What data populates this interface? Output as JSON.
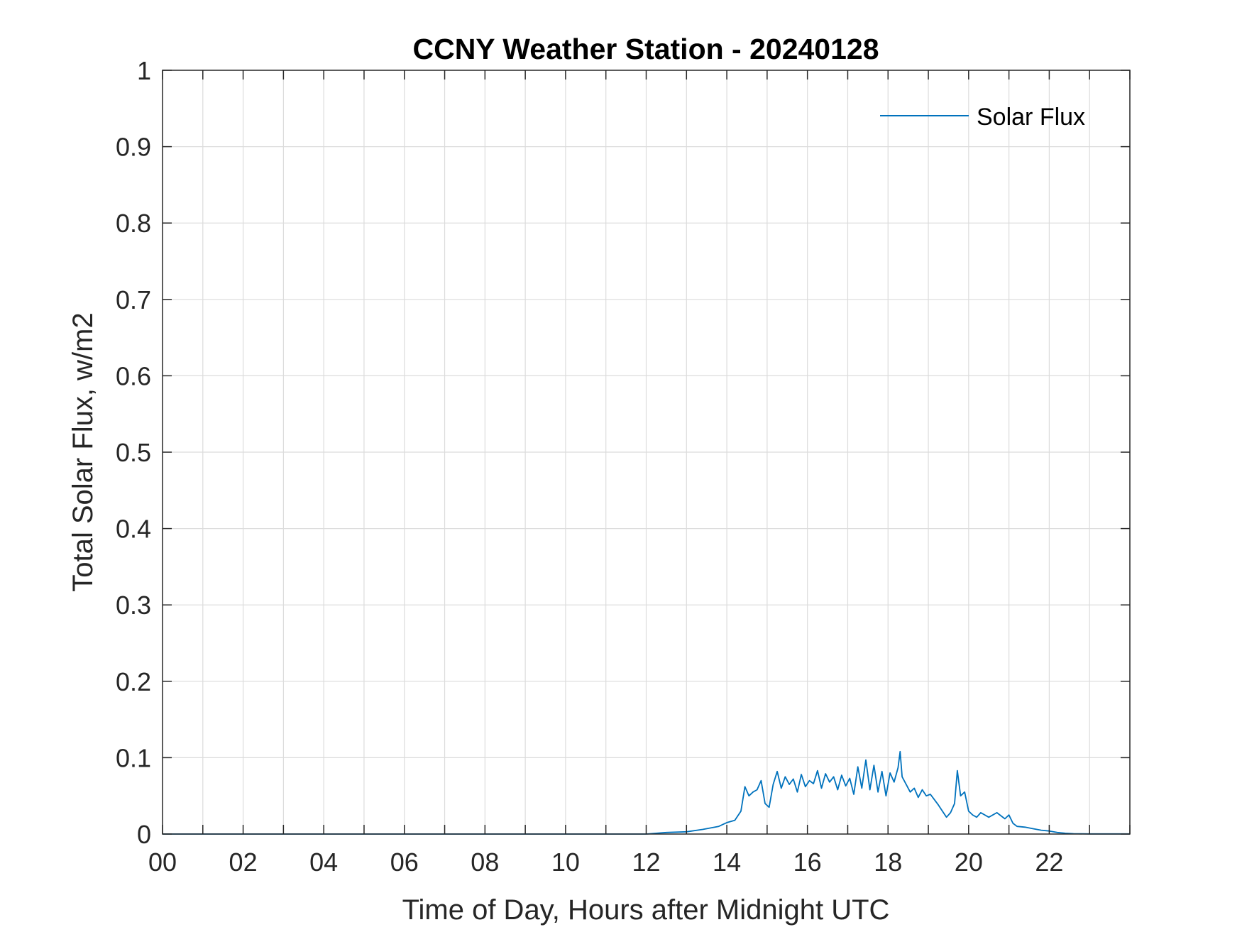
{
  "chart_data": {
    "type": "line",
    "title": "CCNY Weather Station - 20240128",
    "xlabel": "Time of Day, Hours after Midnight UTC",
    "ylabel": "Total Solar Flux, w/m2",
    "xlim": [
      0,
      24
    ],
    "ylim": [
      0,
      1
    ],
    "x_ticks": [
      0,
      2,
      4,
      6,
      8,
      10,
      12,
      14,
      16,
      18,
      20,
      22
    ],
    "x_tick_labels": [
      "00",
      "02",
      "04",
      "06",
      "08",
      "10",
      "12",
      "14",
      "16",
      "18",
      "20",
      "22"
    ],
    "y_ticks": [
      0,
      0.1,
      0.2,
      0.3,
      0.4,
      0.5,
      0.6,
      0.7,
      0.8,
      0.9,
      1
    ],
    "y_tick_labels": [
      "0",
      "0.1",
      "0.2",
      "0.3",
      "0.4",
      "0.5",
      "0.6",
      "0.7",
      "0.8",
      "0.9",
      "1"
    ],
    "grid": true,
    "legend": {
      "position": "top-right",
      "entries": [
        "Solar Flux"
      ]
    },
    "series_color": "#0072BD",
    "series": [
      {
        "name": "Solar Flux",
        "x": [
          0,
          12.0,
          12.5,
          13.0,
          13.4,
          13.8,
          14.0,
          14.2,
          14.35,
          14.45,
          14.55,
          14.65,
          14.75,
          14.85,
          14.95,
          15.05,
          15.15,
          15.25,
          15.35,
          15.45,
          15.55,
          15.65,
          15.75,
          15.85,
          15.95,
          16.05,
          16.15,
          16.25,
          16.35,
          16.45,
          16.55,
          16.65,
          16.75,
          16.85,
          16.95,
          17.05,
          17.15,
          17.25,
          17.35,
          17.45,
          17.55,
          17.65,
          17.75,
          17.85,
          17.95,
          18.05,
          18.15,
          18.25,
          18.3,
          18.35,
          18.45,
          18.55,
          18.65,
          18.75,
          18.85,
          18.95,
          19.05,
          19.15,
          19.25,
          19.35,
          19.45,
          19.55,
          19.65,
          19.72,
          19.8,
          19.9,
          20.0,
          20.1,
          20.2,
          20.3,
          20.5,
          20.7,
          20.9,
          21.0,
          21.1,
          21.2,
          21.4,
          21.6,
          21.8,
          22.0,
          22.2,
          22.4,
          22.6,
          23.0,
          24.0
        ],
        "y": [
          0,
          0,
          0.002,
          0.003,
          0.006,
          0.01,
          0.015,
          0.018,
          0.03,
          0.062,
          0.05,
          0.055,
          0.058,
          0.07,
          0.04,
          0.035,
          0.065,
          0.082,
          0.06,
          0.075,
          0.065,
          0.072,
          0.055,
          0.078,
          0.062,
          0.07,
          0.066,
          0.083,
          0.06,
          0.079,
          0.068,
          0.075,
          0.058,
          0.077,
          0.063,
          0.073,
          0.052,
          0.088,
          0.06,
          0.097,
          0.058,
          0.09,
          0.055,
          0.082,
          0.05,
          0.08,
          0.068,
          0.087,
          0.108,
          0.075,
          0.065,
          0.055,
          0.06,
          0.048,
          0.058,
          0.05,
          0.052,
          0.045,
          0.038,
          0.03,
          0.022,
          0.028,
          0.04,
          0.083,
          0.05,
          0.055,
          0.03,
          0.025,
          0.022,
          0.028,
          0.022,
          0.028,
          0.02,
          0.025,
          0.014,
          0.01,
          0.009,
          0.007,
          0.005,
          0.004,
          0.002,
          0.001,
          0.0005,
          0.0002,
          0.0002
        ]
      }
    ]
  }
}
